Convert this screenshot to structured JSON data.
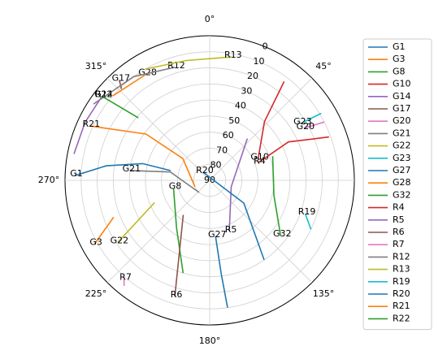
{
  "chart_data": {
    "type": "polar",
    "rlim": [
      90,
      0
    ],
    "rticks": [
      0,
      10,
      20,
      30,
      40,
      50,
      60,
      70,
      80,
      90
    ],
    "thetaticks": [
      {
        "value": 0,
        "label": "0°"
      },
      {
        "value": 45,
        "label": "45°"
      },
      {
        "value": 90,
        "label": "90°"
      },
      {
        "value": 135,
        "label": "135°"
      },
      {
        "value": 180,
        "label": "180°"
      },
      {
        "value": 225,
        "label": "225°"
      },
      {
        "value": 270,
        "label": "270°"
      },
      {
        "value": 315,
        "label": "315°"
      }
    ],
    "grid": true,
    "legend": "right",
    "series": [
      {
        "name": "G1",
        "color": "#1f77b4",
        "x": [
          272,
          278,
          284,
          284
        ],
        "values": [
          6,
          25,
          47,
          65
        ]
      },
      {
        "name": "G3",
        "color": "#ff7f0e",
        "x": [
          241,
          249
        ],
        "values": [
          8,
          26
        ]
      },
      {
        "name": "G8",
        "color": "#2ca02c",
        "x": [
          258,
          215,
          196
        ],
        "values": [
          67,
          54,
          30
        ]
      },
      {
        "name": "G10",
        "color": "#d62728",
        "x": [
          66,
          43,
          37
        ],
        "values": [
          57,
          40,
          13
        ]
      },
      {
        "name": "G14",
        "color": "#9467bd",
        "x": [
          308,
          295,
          281
        ],
        "values": [
          5,
          4.5,
          4
        ]
      },
      {
        "name": "G17",
        "color": "#8c564b",
        "x": [
          318,
          316
        ],
        "values": [
          6,
          11
        ]
      },
      {
        "name": "G20",
        "color": "#e377c2",
        "x": [
          61,
          63
        ],
        "values": [
          23,
          10
        ]
      },
      {
        "name": "G21",
        "color": "#7f7f7f",
        "x": [
          277,
          282,
          221
        ],
        "values": [
          40,
          65,
          80
        ]
      },
      {
        "name": "G22",
        "color": "#bcbd22",
        "x": [
          236,
          248
        ],
        "values": [
          21,
          53
        ]
      },
      {
        "name": "G23",
        "color": "#17becf",
        "x": [
          58,
          59
        ],
        "values": [
          23,
          9
        ]
      },
      {
        "name": "G27",
        "color": "#1f77b4",
        "x": [
          174,
          173,
          172
        ],
        "values": [
          55,
          32,
          10
        ]
      },
      {
        "name": "G28",
        "color": "#ff7f0e",
        "x": [
          329,
          311
        ],
        "values": [
          13,
          10
        ]
      },
      {
        "name": "G32",
        "color": "#2ca02c",
        "x": [
          128,
          103,
          69
        ],
        "values": [
          34,
          49,
          48
        ]
      },
      {
        "name": "R4",
        "color": "#d62728",
        "x": [
          70,
          64,
          70
        ],
        "values": [
          58,
          35.5,
          11
        ]
      },
      {
        "name": "R5",
        "color": "#9467bd",
        "x": [
          159,
          106.5,
          42
        ],
        "values": [
          56,
          76,
          55
        ]
      },
      {
        "name": "R6",
        "color": "#8c564b",
        "x": [
          196.7,
          217.5
        ],
        "values": [
          14.5,
          63
        ]
      },
      {
        "name": "R7",
        "color": "#e377c2",
        "x": [
          221,
          219
        ],
        "values": [
          8.7,
          5.5
        ]
      },
      {
        "name": "R12",
        "color": "#7f7f7f",
        "x": [
          342.8,
          323.8,
          303.3
        ],
        "values": [
          16.4,
          10,
          3.5
        ]
      },
      {
        "name": "R13",
        "color": "#bcbd22",
        "x": [
          10,
          349,
          330
        ],
        "values": [
          12,
          14,
          10
        ]
      },
      {
        "name": "R19",
        "color": "#17becf",
        "x": [
          109.3,
          115.8
        ],
        "values": [
          27,
          20
        ]
      },
      {
        "name": "R20",
        "color": "#1f77b4",
        "x": [
          321,
          123.7,
          145.6
        ],
        "values": [
          83.5,
          64.5,
          30
        ]
      },
      {
        "name": "R21",
        "color": "#ff7f0e",
        "x": [
          294.4,
          306,
          309,
          246
        ],
        "values": [
          8,
          41,
          68.5,
          80
        ]
      },
      {
        "name": "R22",
        "color": "#2ca02c",
        "x": [
          308,
          311.2
        ],
        "values": [
          5,
          31
        ]
      }
    ]
  }
}
